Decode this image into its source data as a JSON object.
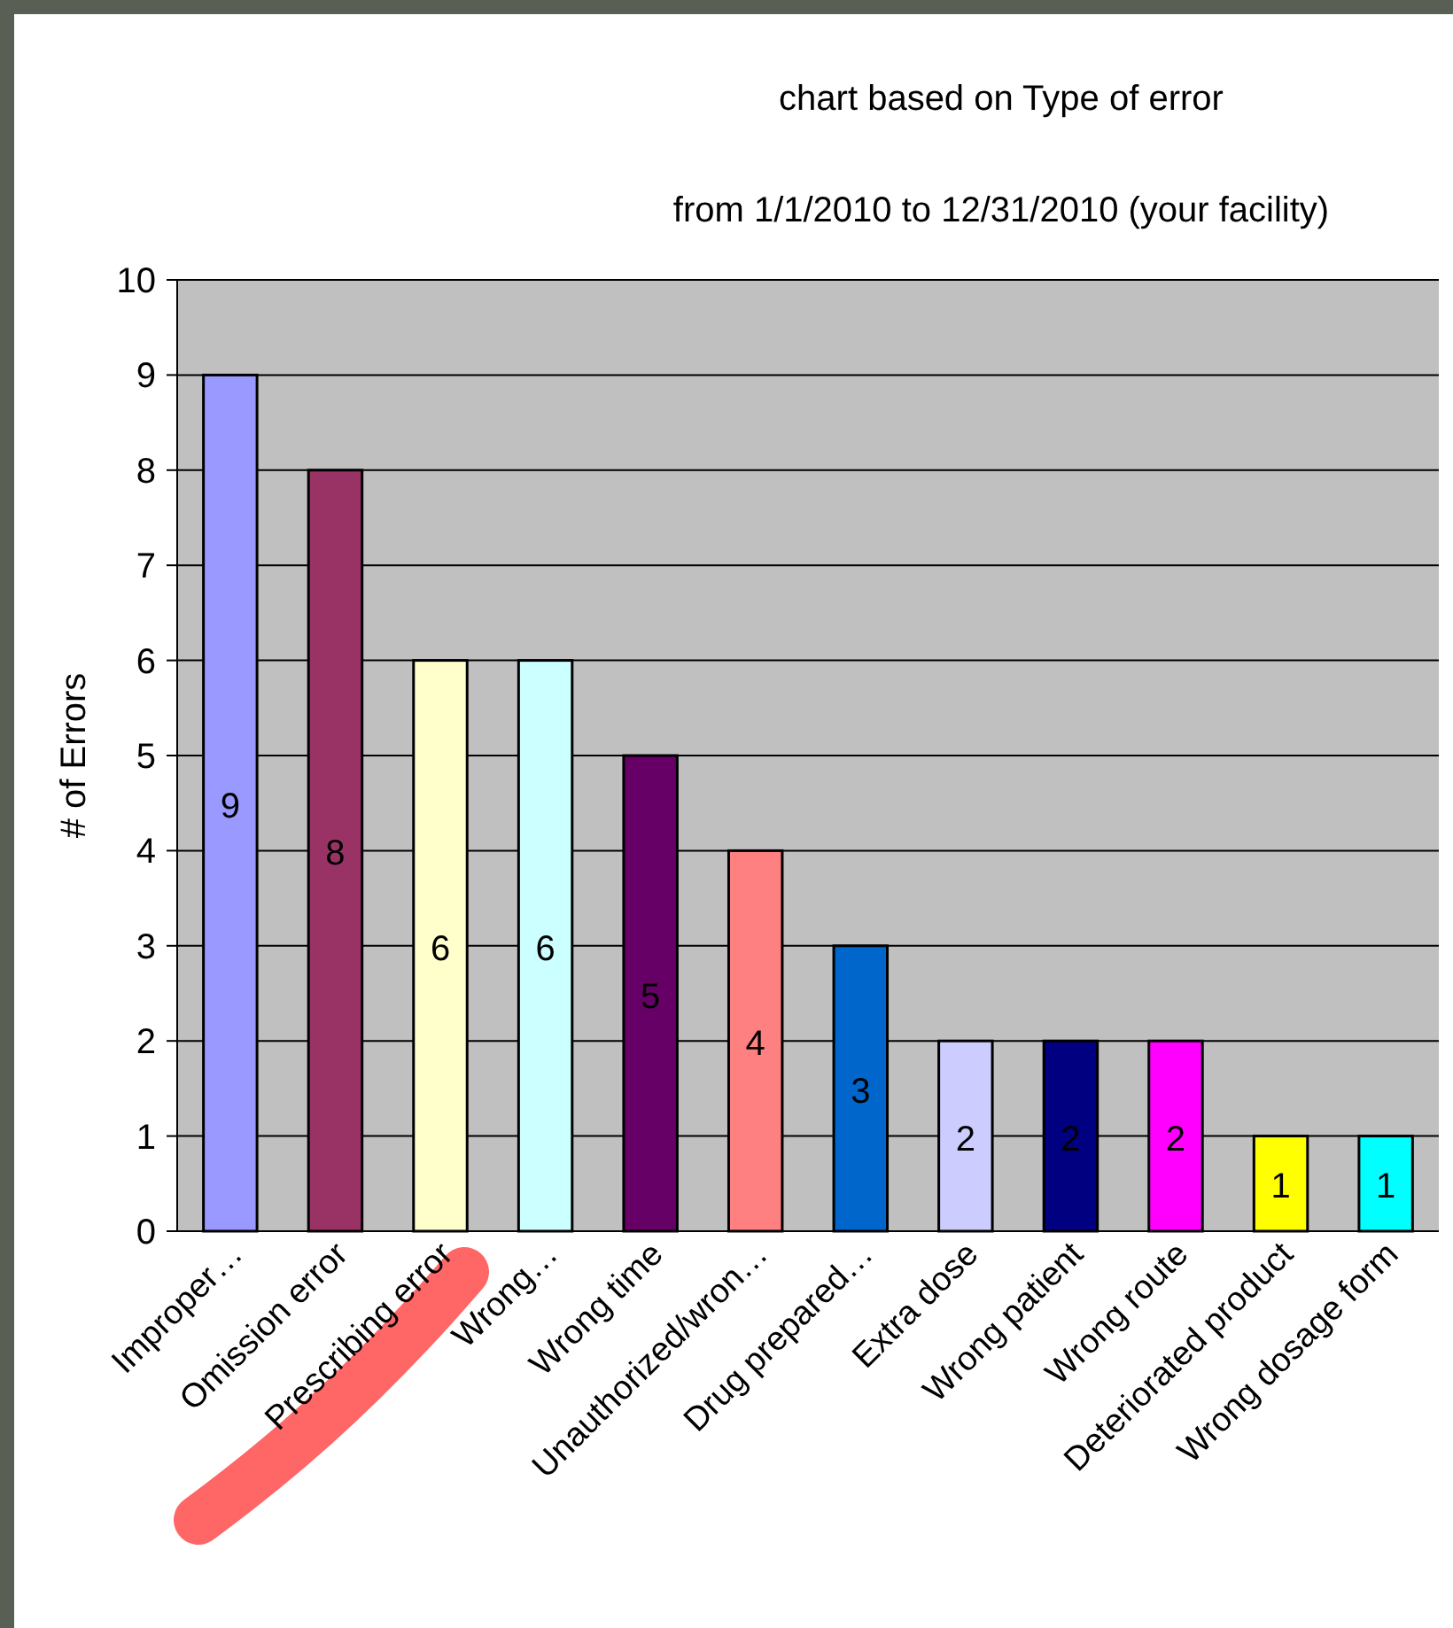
{
  "chart_data": {
    "type": "bar",
    "title": "chart based on Type of error",
    "subtitle": "from 1/1/2010 to 12/31/2010 (your facility)",
    "ylabel": "# of Errors",
    "categories": [
      "Improper…",
      "Omission error",
      "Prescribing error",
      "Wrong…",
      "Wrong time",
      "Unauthorized/wron…",
      "Drug prepared…",
      "Extra dose",
      "Wrong patient",
      "Wrong route",
      "Deteriorated product",
      "Wrong dosage form"
    ],
    "values": [
      9,
      8,
      6,
      6,
      5,
      4,
      3,
      2,
      2,
      2,
      1,
      1
    ],
    "colors": [
      "#9999ff",
      "#993366",
      "#ffffcc",
      "#ccffff",
      "#660066",
      "#ff8080",
      "#0066cc",
      "#ccccff",
      "#000080",
      "#ff00ff",
      "#ffff00",
      "#00ffff"
    ],
    "ylim": [
      0,
      10
    ],
    "yticks": [
      0,
      1,
      2,
      3,
      4,
      5,
      6,
      7,
      8,
      9,
      10
    ],
    "grid": "y",
    "data_labels": true
  }
}
